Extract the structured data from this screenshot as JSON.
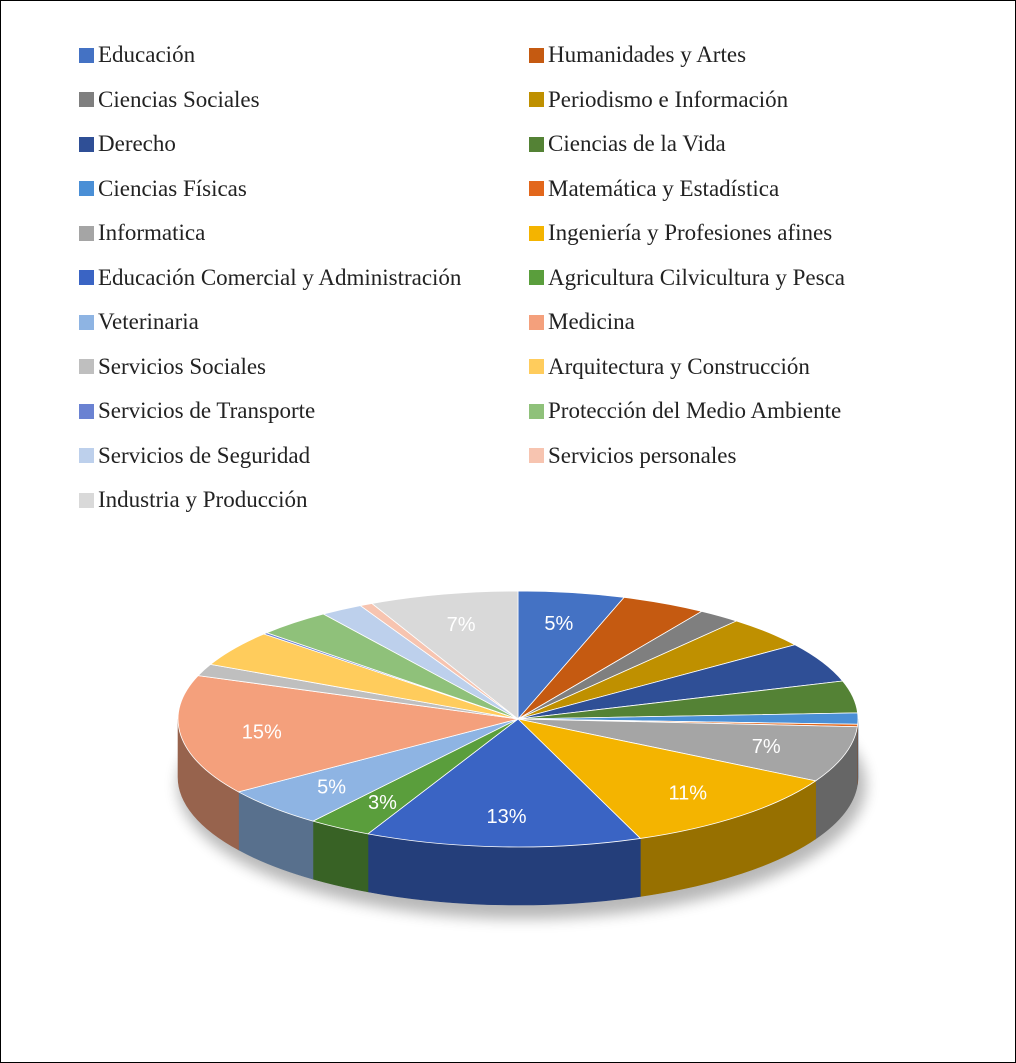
{
  "chart_data": {
    "type": "pie",
    "categories": [
      "Educación",
      "Humanidades y Artes",
      "Ciencias Sociales",
      "Periodismo e Información",
      "Derecho",
      "Ciencias de la Vida",
      "Ciencias Físicas",
      "Matemática y Estadística",
      "Informatica",
      "Ingeniería y Profesiones afines",
      "Educación Comercial y Administración",
      "Agricultura Cilvicultura y Pesca",
      "Veterinaria",
      "Medicina",
      "Servicios Sociales",
      "Arquitectura y Construcción",
      "Servicios de Transporte",
      "Protección del Medio Ambiente",
      "Servicios de Seguridad",
      "Servicios personales",
      "Industria y Producción"
    ],
    "values": [
      5.0,
      4.0,
      2.0,
      4.0,
      5.0,
      4.0,
      1.4,
      0.3,
      7.0,
      11.0,
      13.0,
      3.0,
      5.0,
      15.0,
      1.5,
      4.5,
      0.2,
      3.5,
      2.0,
      0.6,
      7.0
    ],
    "labels": [
      "5%",
      "",
      "",
      "",
      "",
      "",
      "",
      "",
      "7%",
      "11%",
      "13%",
      "3%",
      "5%",
      "15%",
      "",
      "",
      "",
      "",
      "",
      "",
      "7%"
    ],
    "colors": [
      "#4472c4",
      "#c55a11",
      "#7f7f7f",
      "#bf9000",
      "#2f4f96",
      "#548235",
      "#4a8fd6",
      "#e2671c",
      "#a5a5a5",
      "#f4b400",
      "#3a64c4",
      "#5a9e3c",
      "#8eb4e3",
      "#f4a07c",
      "#bfbfbf",
      "#ffcc5c",
      "#6a82d2",
      "#8fc17a",
      "#bdd0ec",
      "#f7c4b0",
      "#d9d9d9"
    ],
    "legend_position": "top",
    "title": "",
    "style": "3d-pie"
  }
}
